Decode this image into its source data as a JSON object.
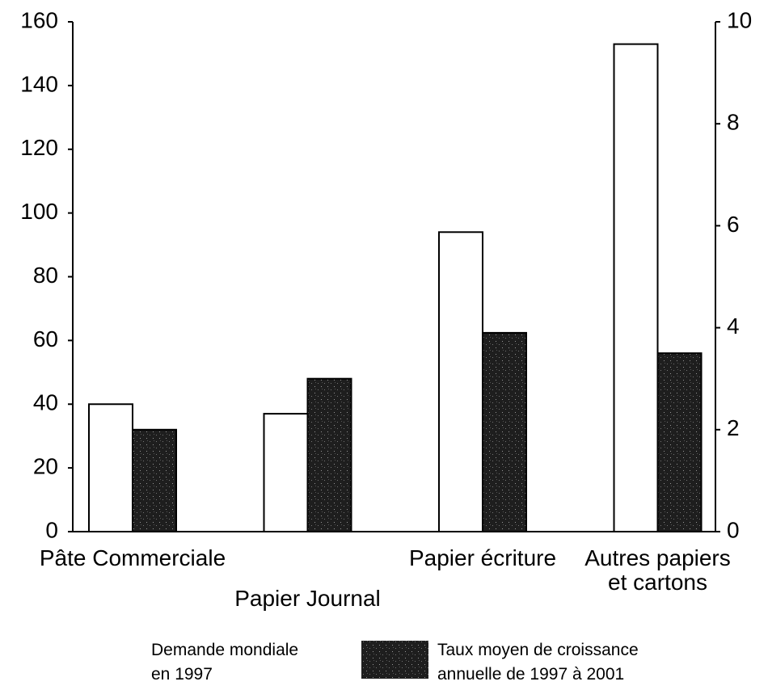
{
  "chart_data": {
    "type": "bar",
    "categories": [
      "Pâte Commerciale",
      "Papier Journal",
      "Papier écriture",
      "Autres papiers\net cartons"
    ],
    "series": [
      {
        "name": "Demande mondiale\nen 1997",
        "color": "#ffffff",
        "values": [
          40,
          37,
          94,
          153
        ]
      },
      {
        "name": "Taux moyen de croissance\nannuelle de 1997 à 2001",
        "color": "#1e1e1e",
        "values": [
          2.0,
          3.0,
          3.9,
          3.5
        ],
        "axis": "y2"
      }
    ],
    "ylim": [
      0,
      160
    ],
    "yticks": [
      0,
      20,
      40,
      60,
      80,
      100,
      120,
      140,
      160
    ],
    "y2lim": [
      0,
      10
    ],
    "y2ticks": [
      0,
      2,
      4,
      6,
      8,
      10
    ],
    "grid": false,
    "legend": "bottom"
  }
}
